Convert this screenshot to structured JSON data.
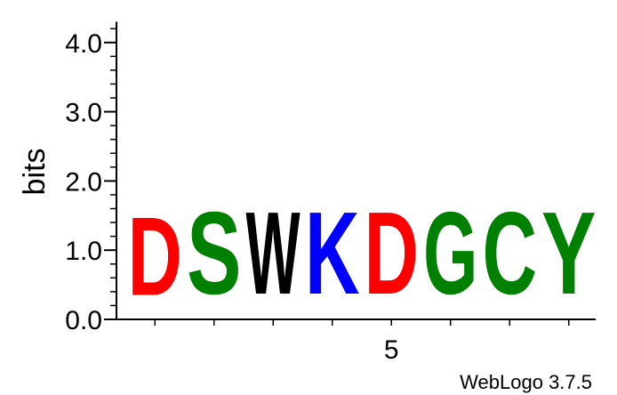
{
  "chart_data": {
    "type": "sequence-logo",
    "ylabel": "bits",
    "ylim": [
      0,
      4.3
    ],
    "y_major_ticks": [
      0.0,
      1.0,
      2.0,
      3.0,
      4.0
    ],
    "y_major_labels": [
      "0.0",
      "1.0",
      "2.0",
      "3.0",
      "4.0"
    ],
    "y_minor_step": 0.2,
    "x_positions": [
      1,
      2,
      3,
      4,
      5,
      6,
      7,
      8
    ],
    "x_tick_labels": [
      {
        "position": 5,
        "label": "5"
      }
    ],
    "columns": [
      {
        "position": 1,
        "letter": "D",
        "bits": 1.8,
        "color": "#ff0000"
      },
      {
        "position": 2,
        "letter": "S",
        "bits": 1.9,
        "color": "#008000"
      },
      {
        "position": 3,
        "letter": "W",
        "bits": 1.9,
        "color": "#000000"
      },
      {
        "position": 4,
        "letter": "K",
        "bits": 1.9,
        "color": "#0000ff"
      },
      {
        "position": 5,
        "letter": "D",
        "bits": 1.9,
        "color": "#ff0000"
      },
      {
        "position": 6,
        "letter": "G",
        "bits": 1.9,
        "color": "#008000"
      },
      {
        "position": 7,
        "letter": "C",
        "bits": 1.9,
        "color": "#008000"
      },
      {
        "position": 8,
        "letter": "Y",
        "bits": 1.9,
        "color": "#008000"
      }
    ]
  },
  "footer": {
    "credit": "WebLogo 3.7.5"
  }
}
